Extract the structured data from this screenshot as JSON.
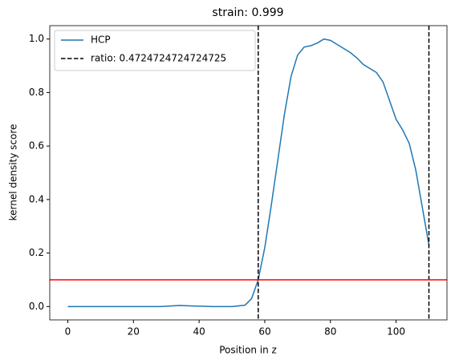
{
  "chart_data": {
    "type": "line",
    "title": "strain: 0.999",
    "xlabel": "Position in z",
    "ylabel": "kernel density score",
    "x": [
      0,
      10,
      20,
      28,
      34,
      38,
      44,
      50,
      54,
      56,
      58,
      60,
      62,
      64,
      66,
      68,
      70,
      72,
      74,
      76,
      78,
      80,
      82,
      84,
      86,
      88,
      90,
      92,
      94,
      96,
      98,
      100,
      102,
      104,
      106,
      108,
      110
    ],
    "series": [
      {
        "name": "HCP",
        "color": "#1f77b4",
        "values": [
          0,
          0,
          0,
          0,
          0.004,
          0.002,
          0,
          0,
          0.005,
          0.03,
          0.1,
          0.22,
          0.38,
          0.55,
          0.72,
          0.86,
          0.94,
          0.97,
          0.975,
          0.985,
          1.0,
          0.995,
          0.98,
          0.965,
          0.95,
          0.93,
          0.905,
          0.89,
          0.875,
          0.84,
          0.77,
          0.7,
          0.66,
          0.61,
          0.51,
          0.37,
          0.23
        ]
      }
    ],
    "vlines": {
      "name": "ratio: 0.4724724724724725",
      "color": "#000000",
      "x": [
        58,
        110
      ]
    },
    "hline": {
      "y": 0.1,
      "color": "#ff0000"
    },
    "xlim": [
      -5.5,
      115.5
    ],
    "ylim": [
      -0.05,
      1.05
    ],
    "xticks": [
      0,
      20,
      40,
      60,
      80,
      100
    ],
    "yticks": [
      {
        "value": 0,
        "label": "0.0"
      },
      0.2,
      0.4,
      0.6,
      0.8,
      {
        "value": 1,
        "label": "1.0"
      }
    ],
    "legend": "upper left"
  }
}
